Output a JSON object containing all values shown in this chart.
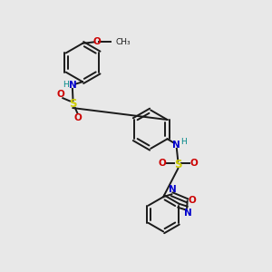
{
  "background_color": "#e8e8e8",
  "bond_color": "#1a1a1a",
  "atom_colors": {
    "N": "#0000cc",
    "O": "#cc0000",
    "S": "#cccc00",
    "H": "#008888",
    "C": "#1a1a1a"
  }
}
